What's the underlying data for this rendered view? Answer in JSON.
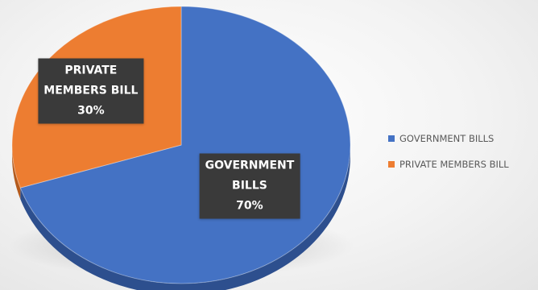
{
  "chart_data": {
    "type": "pie",
    "title": "",
    "legend_position": "right",
    "slices": [
      {
        "name": "GOVERNMENT BILLS",
        "value": 70,
        "value_label": "70%",
        "label_lines": [
          "GOVERNMENT",
          "BILLS"
        ],
        "color": "#4472c4",
        "side_color": "#2d4f8e"
      },
      {
        "name": "PRIVATE MEMBERS BILL",
        "value": 30,
        "value_label": "30%",
        "label_lines": [
          "PRIVATE",
          "MEMBERS BILL"
        ],
        "color": "#ed7d31",
        "side_color": "#b45a1c"
      }
    ],
    "label_background": "#3a3a3a"
  }
}
